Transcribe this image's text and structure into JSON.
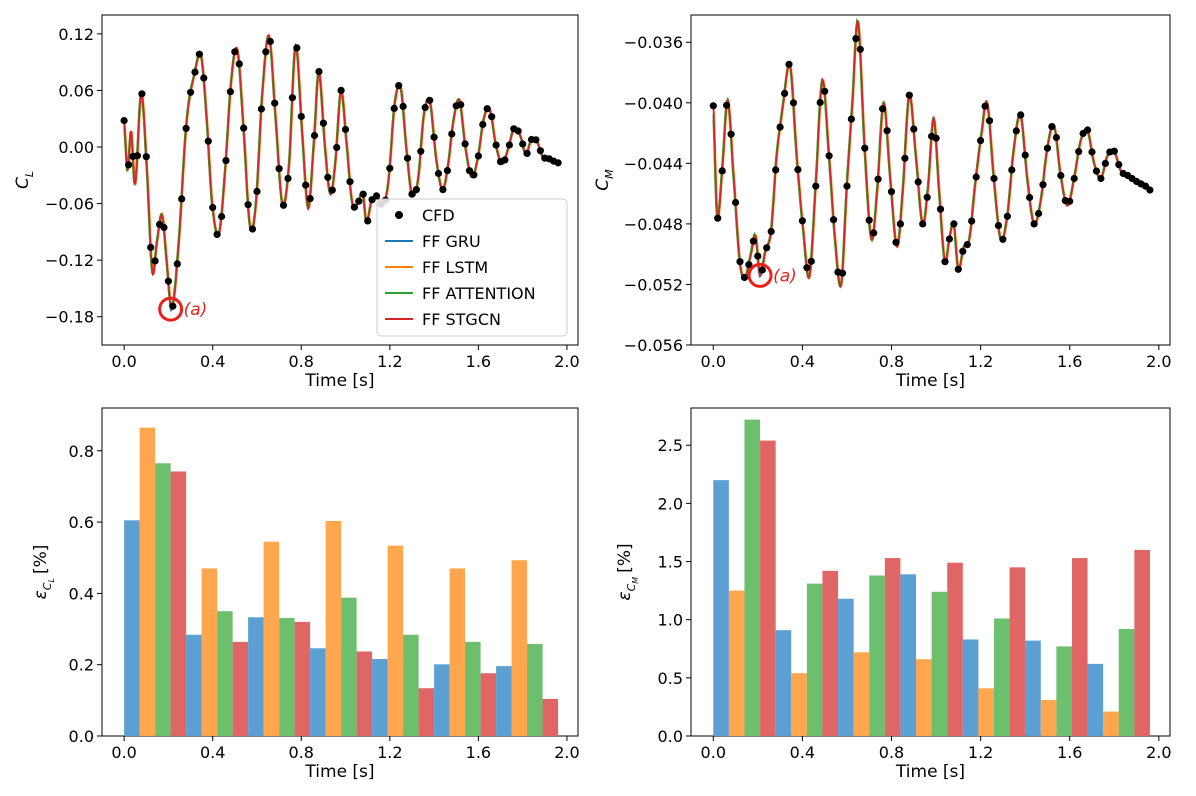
{
  "colors": {
    "cfd": "#000000",
    "ff_gru": "#1f77b4",
    "ff_lstm": "#ff7f0e",
    "ff_attention": "#2ca02c",
    "ff_stgcn": "#d62728",
    "bar_gru": "#5b9fd3",
    "bar_lstm": "#ffa64f",
    "bar_attention": "#6cbf6c",
    "bar_stgcn": "#e06666",
    "annotation": "#e8201c"
  },
  "chart_data": [
    {
      "id": "cl_time",
      "type": "line",
      "xlabel": "Time [s]",
      "ylabel": "C",
      "ylabel_sub": "L",
      "xlim": [
        -0.1,
        2.05
      ],
      "ylim": [
        -0.21,
        0.14
      ],
      "xticks": [
        0.0,
        0.4,
        0.8,
        1.2,
        1.6,
        2.0
      ],
      "xtick_labels": [
        "0.0",
        "0.4",
        "0.8",
        "1.2",
        "1.6",
        "2.0"
      ],
      "yticks": [
        0.12,
        0.06,
        0.0,
        -0.06,
        -0.12,
        -0.18
      ],
      "ytick_labels": [
        "0.12",
        "0.06",
        "0.00",
        "−0.06",
        "−0.12",
        "−0.18"
      ],
      "legend": {
        "position": "lower-right",
        "entries": [
          "CFD",
          "FF GRU",
          "FF LSTM",
          "FF ATTENTION",
          "FF STGCN"
        ]
      },
      "annotation": {
        "text": "(a)",
        "x": 0.21,
        "y": -0.172
      },
      "cfd_points_note": "black markers sampled from the curve",
      "keyframes": [
        [
          0.0,
          0.028
        ],
        [
          0.016,
          -0.025
        ],
        [
          0.032,
          0.017
        ],
        [
          0.05,
          -0.04
        ],
        [
          0.078,
          0.057
        ],
        [
          0.105,
          -0.03
        ],
        [
          0.128,
          -0.133
        ],
        [
          0.148,
          -0.102
        ],
        [
          0.172,
          -0.072
        ],
        [
          0.192,
          -0.12
        ],
        [
          0.215,
          -0.172
        ],
        [
          0.245,
          -0.108
        ],
        [
          0.282,
          0.025
        ],
        [
          0.318,
          0.077
        ],
        [
          0.348,
          0.097
        ],
        [
          0.372,
          0.035
        ],
        [
          0.398,
          -0.06
        ],
        [
          0.428,
          -0.093
        ],
        [
          0.455,
          -0.03
        ],
        [
          0.485,
          0.072
        ],
        [
          0.512,
          0.103
        ],
        [
          0.54,
          0.02
        ],
        [
          0.568,
          -0.082
        ],
        [
          0.595,
          -0.062
        ],
        [
          0.625,
          0.058
        ],
        [
          0.655,
          0.118
        ],
        [
          0.685,
          0.03
        ],
        [
          0.715,
          -0.06
        ],
        [
          0.745,
          -0.02
        ],
        [
          0.775,
          0.108
        ],
        [
          0.805,
          0.015
        ],
        [
          0.832,
          -0.065
        ],
        [
          0.858,
          0.005
        ],
        [
          0.88,
          0.08
        ],
        [
          0.908,
          0.0
        ],
        [
          0.932,
          -0.05
        ],
        [
          0.955,
          -0.015
        ],
        [
          0.98,
          0.06
        ],
        [
          1.005,
          0.005
        ],
        [
          1.03,
          -0.058
        ],
        [
          1.055,
          -0.06
        ],
        [
          1.078,
          -0.048
        ],
        [
          1.095,
          -0.08
        ],
        [
          1.118,
          -0.057
        ],
        [
          1.142,
          -0.052
        ],
        [
          1.17,
          -0.062
        ],
        [
          1.195,
          -0.035
        ],
        [
          1.222,
          0.045
        ],
        [
          1.25,
          0.063
        ],
        [
          1.275,
          0.0
        ],
        [
          1.3,
          -0.05
        ],
        [
          1.328,
          -0.035
        ],
        [
          1.355,
          0.035
        ],
        [
          1.382,
          0.048
        ],
        [
          1.41,
          -0.012
        ],
        [
          1.438,
          -0.045
        ],
        [
          1.462,
          -0.022
        ],
        [
          1.488,
          0.028
        ],
        [
          1.515,
          0.05
        ],
        [
          1.542,
          0.0
        ],
        [
          1.57,
          -0.032
        ],
        [
          1.598,
          -0.012
        ],
        [
          1.625,
          0.03
        ],
        [
          1.652,
          0.04
        ],
        [
          1.68,
          0.002
        ],
        [
          1.708,
          -0.018
        ],
        [
          1.735,
          -0.002
        ],
        [
          1.762,
          0.02
        ],
        [
          1.79,
          0.012
        ],
        [
          1.815,
          -0.008
        ],
        [
          1.84,
          0.008
        ],
        [
          1.865,
          0.006
        ],
        [
          1.89,
          -0.01
        ],
        [
          1.915,
          -0.012
        ],
        [
          1.94,
          -0.015
        ],
        [
          1.965,
          -0.017
        ]
      ]
    },
    {
      "id": "cm_time",
      "type": "line",
      "xlabel": "Time [s]",
      "ylabel": "C",
      "ylabel_sub": "M",
      "xlim": [
        -0.1,
        2.05
      ],
      "ylim": [
        -0.056,
        -0.0342
      ],
      "xticks": [
        0.0,
        0.4,
        0.8,
        1.2,
        1.6,
        2.0
      ],
      "xtick_labels": [
        "0.0",
        "0.4",
        "0.8",
        "1.2",
        "1.6",
        "2.0"
      ],
      "yticks": [
        -0.036,
        -0.04,
        -0.044,
        -0.048,
        -0.052,
        -0.056
      ],
      "ytick_labels": [
        "−0.036",
        "−0.040",
        "−0.044",
        "−0.048",
        "−0.052",
        "−0.056"
      ],
      "annotation": {
        "text": "(a)",
        "x": 0.21,
        "y": -0.0514
      },
      "keyframes": [
        [
          0.0,
          -0.0402
        ],
        [
          0.018,
          -0.0475
        ],
        [
          0.04,
          -0.0445
        ],
        [
          0.065,
          -0.0398
        ],
        [
          0.09,
          -0.0445
        ],
        [
          0.12,
          -0.0505
        ],
        [
          0.145,
          -0.0515
        ],
        [
          0.17,
          -0.05
        ],
        [
          0.19,
          -0.0488
        ],
        [
          0.21,
          -0.0514
        ],
        [
          0.235,
          -0.0498
        ],
        [
          0.26,
          -0.0485
        ],
        [
          0.285,
          -0.0435
        ],
        [
          0.31,
          -0.0405
        ],
        [
          0.345,
          -0.0375
        ],
        [
          0.375,
          -0.0435
        ],
        [
          0.405,
          -0.0485
        ],
        [
          0.432,
          -0.0515
        ],
        [
          0.46,
          -0.0455
        ],
        [
          0.49,
          -0.0385
        ],
        [
          0.52,
          -0.0435
        ],
        [
          0.55,
          -0.0495
        ],
        [
          0.575,
          -0.052
        ],
        [
          0.6,
          -0.0455
        ],
        [
          0.625,
          -0.04
        ],
        [
          0.65,
          -0.0346
        ],
        [
          0.68,
          -0.043
        ],
        [
          0.71,
          -0.049
        ],
        [
          0.735,
          -0.046
        ],
        [
          0.765,
          -0.04
        ],
        [
          0.795,
          -0.045
        ],
        [
          0.825,
          -0.0495
        ],
        [
          0.85,
          -0.046
        ],
        [
          0.88,
          -0.0395
        ],
        [
          0.91,
          -0.0435
        ],
        [
          0.94,
          -0.048
        ],
        [
          0.965,
          -0.0455
        ],
        [
          0.99,
          -0.041
        ],
        [
          1.015,
          -0.046
        ],
        [
          1.04,
          -0.0505
        ],
        [
          1.06,
          -0.049
        ],
        [
          1.08,
          -0.048
        ],
        [
          1.1,
          -0.051
        ],
        [
          1.125,
          -0.0495
        ],
        [
          1.15,
          -0.049
        ],
        [
          1.175,
          -0.0455
        ],
        [
          1.205,
          -0.042
        ],
        [
          1.23,
          -0.04
        ],
        [
          1.26,
          -0.045
        ],
        [
          1.29,
          -0.049
        ],
        [
          1.32,
          -0.0475
        ],
        [
          1.35,
          -0.043
        ],
        [
          1.38,
          -0.0408
        ],
        [
          1.41,
          -0.045
        ],
        [
          1.44,
          -0.048
        ],
        [
          1.47,
          -0.0465
        ],
        [
          1.5,
          -0.043
        ],
        [
          1.53,
          -0.0415
        ],
        [
          1.56,
          -0.0448
        ],
        [
          1.59,
          -0.0468
        ],
        [
          1.62,
          -0.045
        ],
        [
          1.65,
          -0.0425
        ],
        [
          1.68,
          -0.0418
        ],
        [
          1.71,
          -0.044
        ],
        [
          1.74,
          -0.045
        ],
        [
          1.77,
          -0.0435
        ],
        [
          1.8,
          -0.0432
        ],
        [
          1.83,
          -0.0445
        ],
        [
          1.86,
          -0.0448
        ],
        [
          1.9,
          -0.0452
        ],
        [
          1.94,
          -0.0455
        ],
        [
          1.965,
          -0.0458
        ]
      ]
    },
    {
      "id": "ecl_bars",
      "type": "bar",
      "xlabel": "Time [s]",
      "ylabel": "ε",
      "ylabel_sub": "C",
      "ylabel_subsub": "L",
      "ylabel_unit": "[%]",
      "xlim": [
        -0.1,
        2.05
      ],
      "ylim": [
        0.0,
        0.92
      ],
      "xticks": [
        0.0,
        0.4,
        0.8,
        1.2,
        1.6,
        2.0
      ],
      "xtick_labels": [
        "0.0",
        "0.4",
        "0.8",
        "1.2",
        "1.6",
        "2.0"
      ],
      "yticks": [
        0.0,
        0.2,
        0.4,
        0.6,
        0.8
      ],
      "ytick_labels": [
        "0.0",
        "0.2",
        "0.4",
        "0.6",
        "0.8"
      ],
      "group_starts": [
        0.0,
        0.28,
        0.56,
        0.84,
        1.12,
        1.4,
        1.68
      ],
      "bar_width": 0.07,
      "series": [
        {
          "name": "FF GRU",
          "values": [
            0.605,
            0.284,
            0.333,
            0.246,
            0.216,
            0.201,
            0.196
          ]
        },
        {
          "name": "FF LSTM",
          "values": [
            0.865,
            0.47,
            0.545,
            0.603,
            0.534,
            0.47,
            0.493
          ]
        },
        {
          "name": "FF ATTENTION",
          "values": [
            0.765,
            0.35,
            0.331,
            0.388,
            0.284,
            0.264,
            0.258
          ]
        },
        {
          "name": "FF STGCN",
          "values": [
            0.742,
            0.264,
            0.32,
            0.237,
            0.134,
            0.176,
            0.104
          ]
        }
      ]
    },
    {
      "id": "ecm_bars",
      "type": "bar",
      "xlabel": "Time [s]",
      "ylabel": "ε",
      "ylabel_sub": "C",
      "ylabel_subsub": "M",
      "ylabel_unit": "[%]",
      "xlim": [
        -0.1,
        2.05
      ],
      "ylim": [
        0.0,
        2.82
      ],
      "xticks": [
        0.0,
        0.4,
        0.8,
        1.2,
        1.6,
        2.0
      ],
      "xtick_labels": [
        "0.0",
        "0.4",
        "0.8",
        "1.2",
        "1.6",
        "2.0"
      ],
      "yticks": [
        0.0,
        0.5,
        1.0,
        1.5,
        2.0,
        2.5
      ],
      "ytick_labels": [
        "0.0",
        "0.5",
        "1.0",
        "1.5",
        "2.0",
        "2.5"
      ],
      "group_starts": [
        0.0,
        0.28,
        0.56,
        0.84,
        1.12,
        1.4,
        1.68
      ],
      "bar_width": 0.07,
      "series": [
        {
          "name": "FF GRU",
          "values": [
            2.2,
            0.91,
            1.18,
            1.39,
            0.83,
            0.82,
            0.62
          ]
        },
        {
          "name": "FF LSTM",
          "values": [
            1.25,
            0.54,
            0.72,
            0.66,
            0.41,
            0.31,
            0.21
          ]
        },
        {
          "name": "FF ATTENTION",
          "values": [
            2.72,
            1.31,
            1.38,
            1.24,
            1.01,
            0.77,
            0.92
          ]
        },
        {
          "name": "FF STGCN",
          "values": [
            2.54,
            1.42,
            1.53,
            1.49,
            1.45,
            1.53,
            1.6
          ]
        }
      ]
    }
  ]
}
